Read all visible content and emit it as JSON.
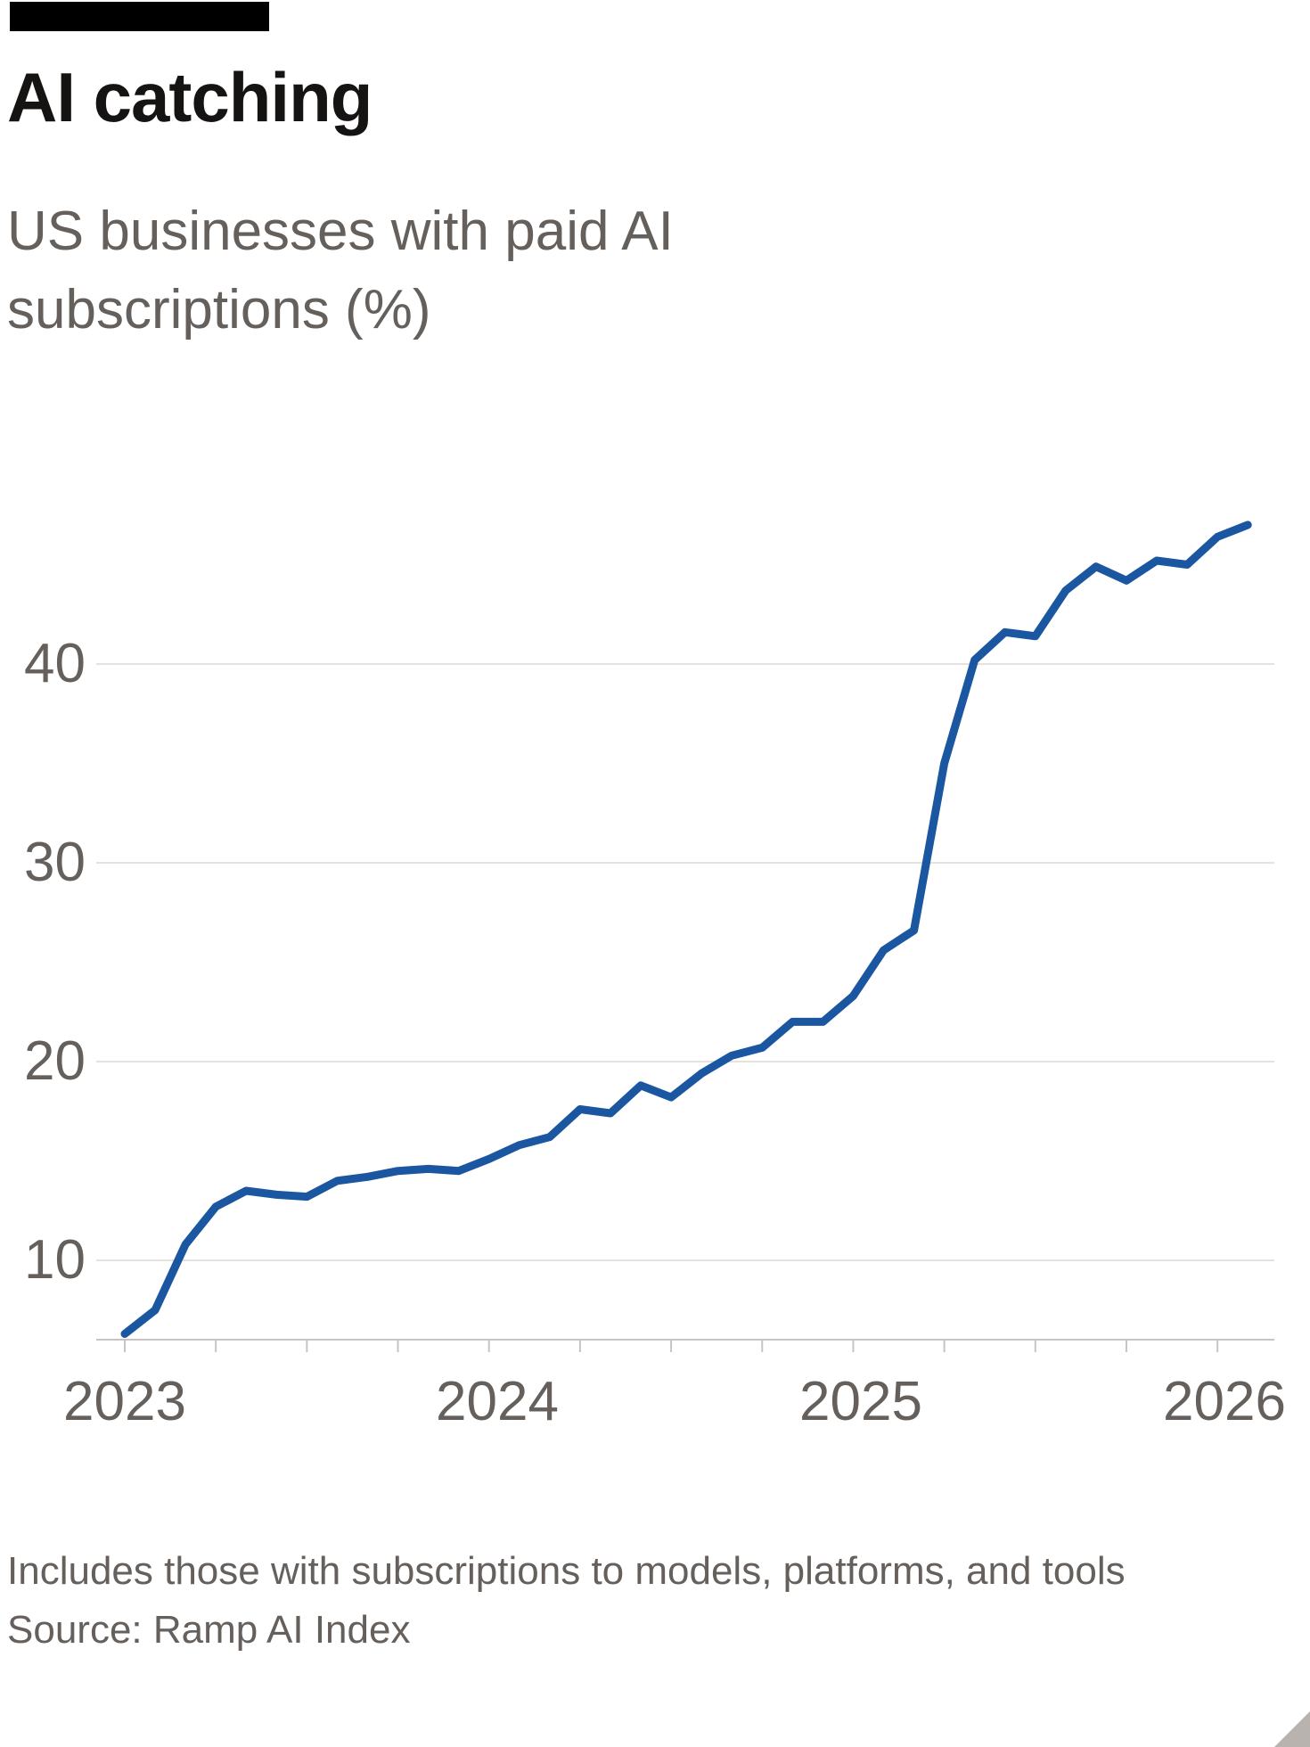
{
  "page": {
    "title": "AI catching",
    "subtitle": "US businesses with paid AI subscriptions (%)",
    "footnote": "Includes those with subscriptions to models, platforms, and tools",
    "source": "Source: Ramp AI Index"
  },
  "colors": {
    "line": "#1a57a0",
    "grid": "#e4e1de",
    "axis": "#c9c4c0",
    "text_muted": "#66605c",
    "title_text": "#161412",
    "brand_bar": "#000000",
    "background": "#ffffff"
  },
  "chart_data": {
    "type": "line",
    "title": "AI catching",
    "subtitle": "US businesses with paid AI subscriptions (%)",
    "ylabel": "US businesses with paid AI subscriptions (%)",
    "xlabel": "",
    "x": [
      "2023-01",
      "2023-02",
      "2023-03",
      "2023-04",
      "2023-05",
      "2023-06",
      "2023-07",
      "2023-08",
      "2023-09",
      "2023-10",
      "2023-11",
      "2023-12",
      "2024-01",
      "2024-02",
      "2024-03",
      "2024-04",
      "2024-05",
      "2024-06",
      "2024-07",
      "2024-08",
      "2024-09",
      "2024-10",
      "2024-11",
      "2024-12",
      "2025-01",
      "2025-02",
      "2025-03",
      "2025-04",
      "2025-05",
      "2025-06",
      "2025-07",
      "2025-08",
      "2025-09",
      "2025-10",
      "2025-11",
      "2025-12",
      "2026-01",
      "2026-02"
    ],
    "values": [
      6.3,
      7.5,
      10.8,
      12.7,
      13.5,
      13.3,
      13.2,
      14.0,
      14.2,
      14.5,
      14.6,
      14.5,
      15.1,
      15.8,
      16.2,
      17.6,
      17.4,
      18.8,
      18.2,
      19.4,
      20.3,
      20.7,
      22.0,
      22.0,
      23.3,
      25.6,
      26.6,
      35.0,
      40.2,
      41.6,
      41.4,
      43.7,
      44.9,
      44.2,
      45.2,
      45.0,
      46.4,
      47.0
    ],
    "yticks": [
      10,
      20,
      30,
      40
    ],
    "xticks": [
      "2023",
      "2024",
      "2025",
      "2026"
    ],
    "ylim": [
      6,
      48.5
    ],
    "grid": "horizontal",
    "legend": "none",
    "series_name": "US businesses with paid AI subscriptions (%)",
    "note": "Includes those with subscriptions to models, platforms, and tools",
    "source": "Source: Ramp AI Index"
  }
}
